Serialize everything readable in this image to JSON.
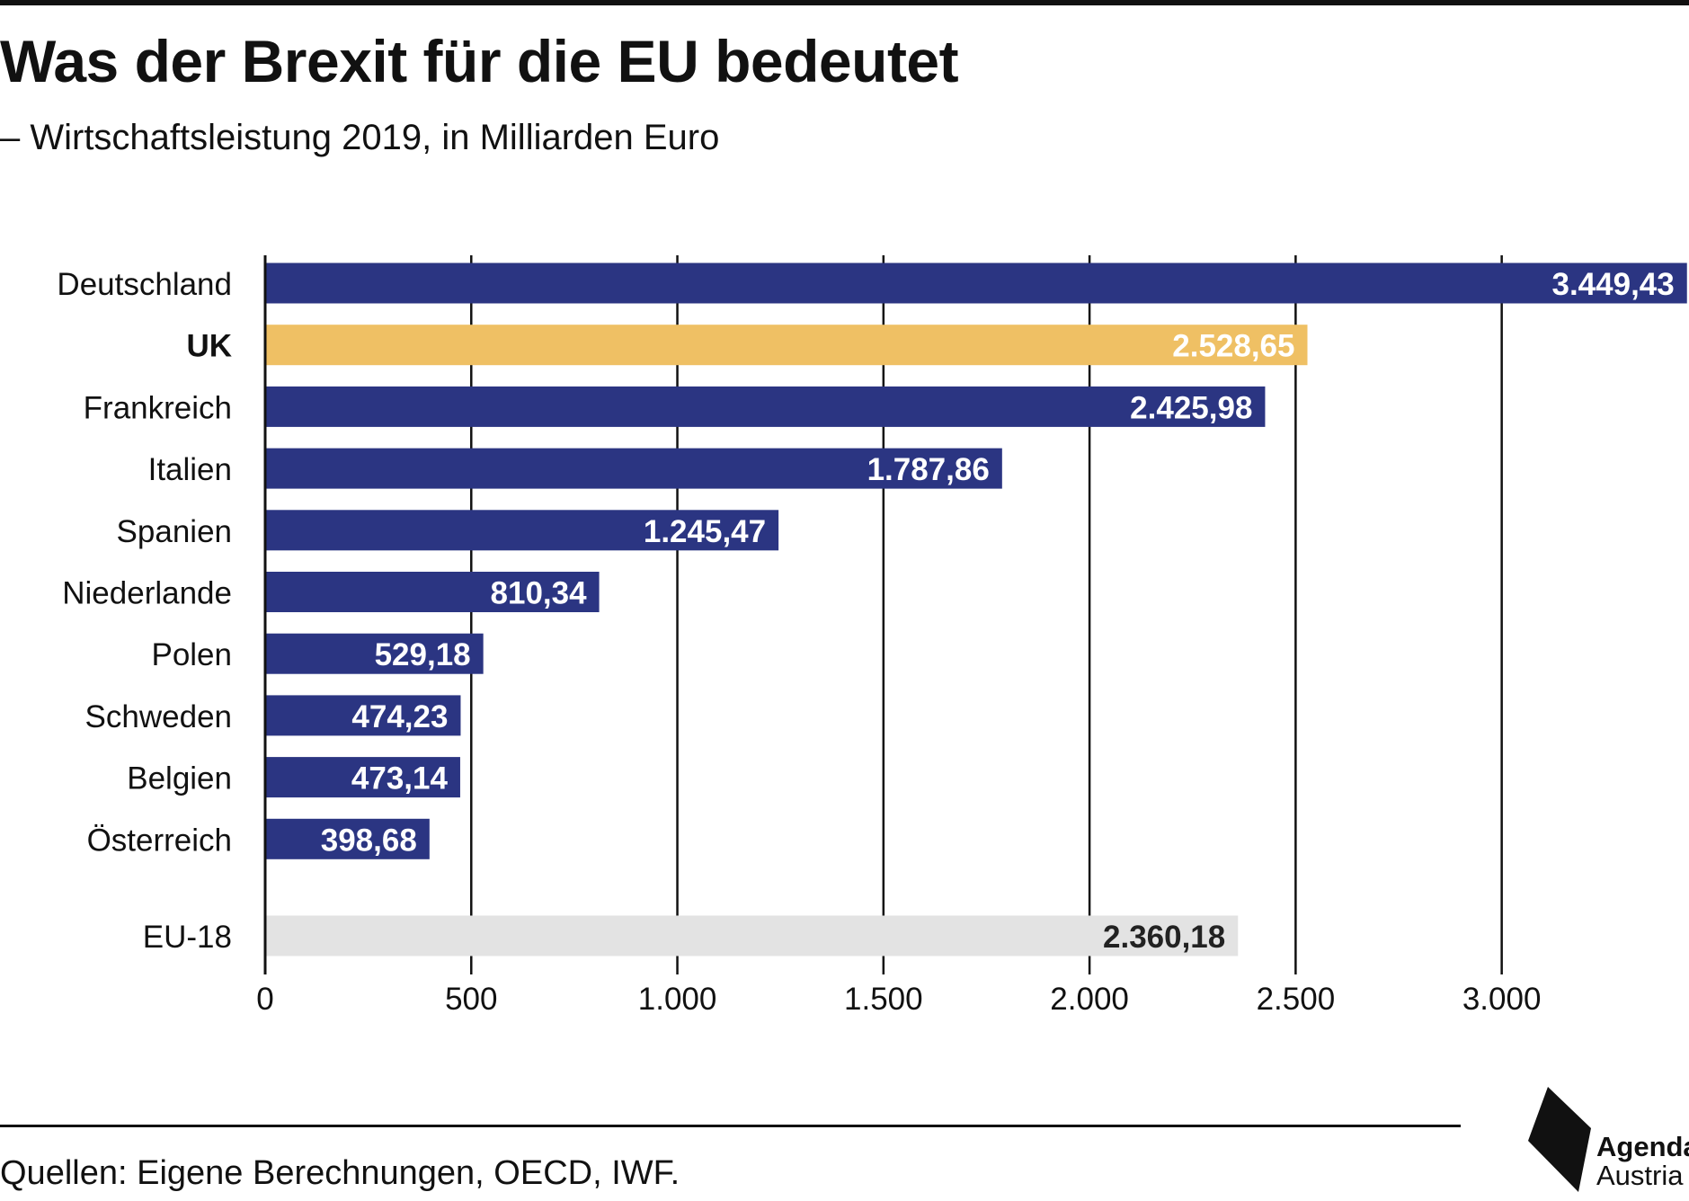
{
  "title": "Was der Brexit für die EU bedeutet",
  "subtitle": "– Wirtschaftsleistung 2019, in Milliarden Euro",
  "source": "Quellen: Eigene Berechnungen, OECD, IWF.",
  "logo": {
    "line1": "Agenda",
    "line2": "Austria"
  },
  "colors": {
    "primary": "#2b3582",
    "highlight": "#efc064",
    "aggregate": "#e3e3e3",
    "text": "#111111"
  },
  "chart_data": {
    "type": "bar",
    "orientation": "horizontal",
    "categories": [
      "Deutschland",
      "UK",
      "Frankreich",
      "Italien",
      "Spanien",
      "Niederlande",
      "Polen",
      "Schweden",
      "Belgien",
      "Österreich",
      "EU-18"
    ],
    "values": [
      3449.43,
      2528.65,
      2425.98,
      1787.86,
      1245.47,
      810.34,
      529.18,
      474.23,
      473.14,
      398.68,
      2360.18
    ],
    "value_labels": [
      "3.449,43",
      "2.528,65",
      "2.425,98",
      "1.787,86",
      "1.245,47",
      "810,34",
      "529,18",
      "474,23",
      "473,14",
      "398,68",
      "2.360,18"
    ],
    "highlight": [
      "UK"
    ],
    "aggregate": [
      "EU-18"
    ],
    "xlim": [
      0,
      3450
    ],
    "xticks": [
      0,
      500,
      1000,
      1500,
      2000,
      2500,
      3000
    ],
    "xtick_labels": [
      "0",
      "500",
      "1.000",
      "1.500",
      "2.000",
      "2.500",
      "3.000"
    ],
    "grid": true
  }
}
